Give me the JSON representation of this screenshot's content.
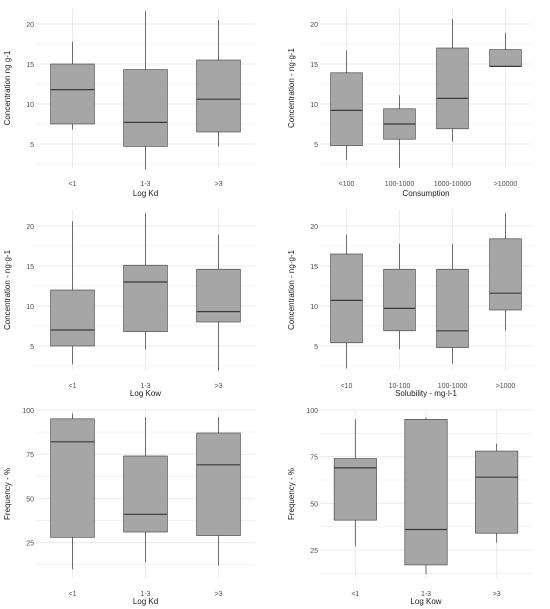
{
  "chart_data": [
    {
      "type": "box",
      "title": "",
      "xlabel": "Log Kd",
      "ylabel": "Concentration ng g-1",
      "ylim": [
        2,
        22
      ],
      "yticks": [
        5,
        10,
        15,
        20
      ],
      "grid": true,
      "categories": [
        "<1",
        "1-3",
        ">3"
      ],
      "boxes": [
        {
          "min": 6.8,
          "q1": 7.5,
          "median": 11.8,
          "q3": 15.0,
          "max": 17.8
        },
        {
          "min": 1.8,
          "q1": 4.7,
          "median": 7.7,
          "q3": 14.3,
          "max": 21.6
        },
        {
          "min": 4.7,
          "q1": 6.5,
          "median": 10.6,
          "q3": 15.5,
          "max": 20.5
        }
      ]
    },
    {
      "type": "box",
      "title": "",
      "xlabel": "Consumption",
      "ylabel": "Concentration - ng·g-1",
      "ylim": [
        2,
        22
      ],
      "yticks": [
        5,
        10,
        15,
        20
      ],
      "grid": true,
      "categories": [
        "<100",
        "100-1000",
        "1000-10000",
        ">10000"
      ],
      "boxes": [
        {
          "min": 3.0,
          "q1": 4.8,
          "median": 9.2,
          "q3": 13.9,
          "max": 16.7
        },
        {
          "min": 2.0,
          "q1": 5.6,
          "median": 7.5,
          "q3": 9.4,
          "max": 11.1
        },
        {
          "min": 5.3,
          "q1": 6.9,
          "median": 10.7,
          "q3": 17.0,
          "max": 20.6
        },
        {
          "min": 14.7,
          "q1": 14.7,
          "median": 14.7,
          "q3": 16.8,
          "max": 18.9
        }
      ]
    },
    {
      "type": "box",
      "title": "",
      "xlabel": "Log Kow",
      "ylabel": "Concentration - ng·g-1",
      "ylim": [
        2,
        22
      ],
      "yticks": [
        5,
        10,
        15,
        20
      ],
      "grid": true,
      "categories": [
        "<1",
        "1-3",
        ">3"
      ],
      "boxes": [
        {
          "min": 2.7,
          "q1": 5.0,
          "median": 7.0,
          "q3": 12.0,
          "max": 20.6
        },
        {
          "min": 4.6,
          "q1": 6.8,
          "median": 13.0,
          "q3": 15.1,
          "max": 21.6
        },
        {
          "min": 1.9,
          "q1": 8.0,
          "median": 9.3,
          "q3": 14.6,
          "max": 18.9
        }
      ]
    },
    {
      "type": "box",
      "title": "",
      "xlabel": "Solubility - mg·l-1",
      "ylabel": "Concentration - ng·g-1",
      "ylim": [
        2,
        22
      ],
      "yticks": [
        5,
        10,
        15,
        20
      ],
      "grid": true,
      "categories": [
        "<10",
        "10-100",
        "100-1000",
        ">1000"
      ],
      "boxes": [
        {
          "min": 2.2,
          "q1": 5.4,
          "median": 10.7,
          "q3": 16.5,
          "max": 18.9
        },
        {
          "min": 4.6,
          "q1": 6.9,
          "median": 9.7,
          "q3": 14.6,
          "max": 17.8
        },
        {
          "min": 2.8,
          "q1": 4.8,
          "median": 6.9,
          "q3": 14.6,
          "max": 17.8
        },
        {
          "min": 6.9,
          "q1": 9.5,
          "median": 11.6,
          "q3": 18.4,
          "max": 21.6
        }
      ]
    },
    {
      "type": "box",
      "title": "",
      "xlabel": "Log Kd",
      "ylabel": "Frequency - %",
      "ylim": [
        5,
        100
      ],
      "yticks": [
        25,
        50,
        75,
        100
      ],
      "grid": true,
      "categories": [
        "<1",
        "1-3",
        ">3"
      ],
      "boxes": [
        {
          "min": 10,
          "q1": 28,
          "median": 82,
          "q3": 95,
          "max": 98
        },
        {
          "min": 14,
          "q1": 31,
          "median": 41,
          "q3": 74,
          "max": 96
        },
        {
          "min": 12,
          "q1": 29,
          "median": 69,
          "q3": 87,
          "max": 96
        }
      ]
    },
    {
      "type": "box",
      "title": "",
      "xlabel": "Log Kow",
      "ylabel": "Frequency - %",
      "ylim": [
        10,
        100
      ],
      "yticks": [
        25,
        50,
        75,
        100
      ],
      "grid": true,
      "categories": [
        "<1",
        "1-3",
        ">3"
      ],
      "boxes": [
        {
          "min": 27,
          "q1": 41,
          "median": 69,
          "q3": 74,
          "max": 95
        },
        {
          "min": 12,
          "q1": 17,
          "median": 36,
          "q3": 95,
          "max": 96
        },
        {
          "min": 29,
          "q1": 34,
          "median": 64,
          "q3": 78,
          "max": 82
        }
      ]
    }
  ],
  "colors": {
    "box_fill": "#a6a6a6",
    "box_stroke": "#3a3a3a",
    "whisker": "#4d4d4d",
    "grid": "#ebebeb",
    "text": "#4d4d4d",
    "title_text": "#1a1a1a"
  }
}
